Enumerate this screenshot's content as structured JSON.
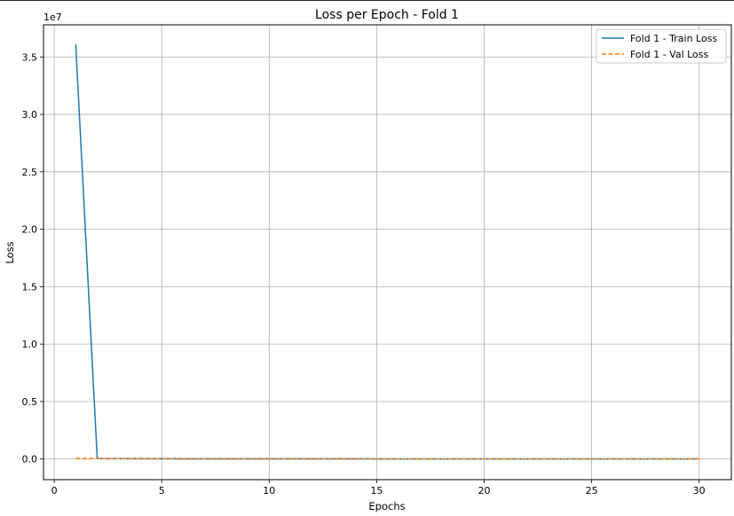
{
  "chart_data": {
    "type": "line",
    "title": "Loss per Epoch - Fold 1",
    "xlabel": "Epochs",
    "ylabel": "Loss",
    "y_offset_label": "1e7",
    "xlim": [
      -0.5,
      31.5
    ],
    "ylim": [
      -0.18,
      3.78
    ],
    "y_scale_factor": 10000000,
    "x_ticks": [
      0,
      5,
      10,
      15,
      20,
      25,
      30
    ],
    "x_tick_labels": [
      "0",
      "5",
      "10",
      "15",
      "20",
      "25",
      "30"
    ],
    "y_ticks": [
      0.0,
      0.5,
      1.0,
      1.5,
      2.0,
      2.5,
      3.0,
      3.5
    ],
    "y_tick_labels": [
      "0.0",
      "0.5",
      "1.0",
      "1.5",
      "2.0",
      "2.5",
      "3.0",
      "3.5"
    ],
    "grid": true,
    "legend_position": "top-right",
    "x": [
      1,
      2,
      3,
      4,
      5,
      6,
      7,
      8,
      9,
      10,
      11,
      12,
      13,
      14,
      15,
      16,
      17,
      18,
      19,
      20,
      21,
      22,
      23,
      24,
      25,
      26,
      27,
      28,
      29,
      30
    ],
    "series": [
      {
        "name": "Fold 1 - Train Loss",
        "color": "#1f77b4",
        "line_style": "solid",
        "values": [
          36100000,
          40000,
          30000,
          25000,
          20000,
          18000,
          16000,
          15000,
          14000,
          13000,
          12000,
          11000,
          10000,
          10000,
          9000,
          9000,
          8000,
          8000,
          8000,
          7000,
          7000,
          7000,
          6000,
          6000,
          6000,
          6000,
          5000,
          5000,
          5000,
          5000
        ]
      },
      {
        "name": "Fold 1 - Val Loss",
        "color": "#ff7f0e",
        "line_style": "dashed",
        "values": [
          60000,
          40000,
          30000,
          25000,
          20000,
          18000,
          16000,
          15000,
          14000,
          13000,
          12000,
          11000,
          10000,
          10000,
          9000,
          9000,
          8000,
          8000,
          8000,
          7000,
          7000,
          7000,
          6000,
          6000,
          6000,
          6000,
          5000,
          5000,
          5000,
          5000
        ]
      }
    ]
  }
}
